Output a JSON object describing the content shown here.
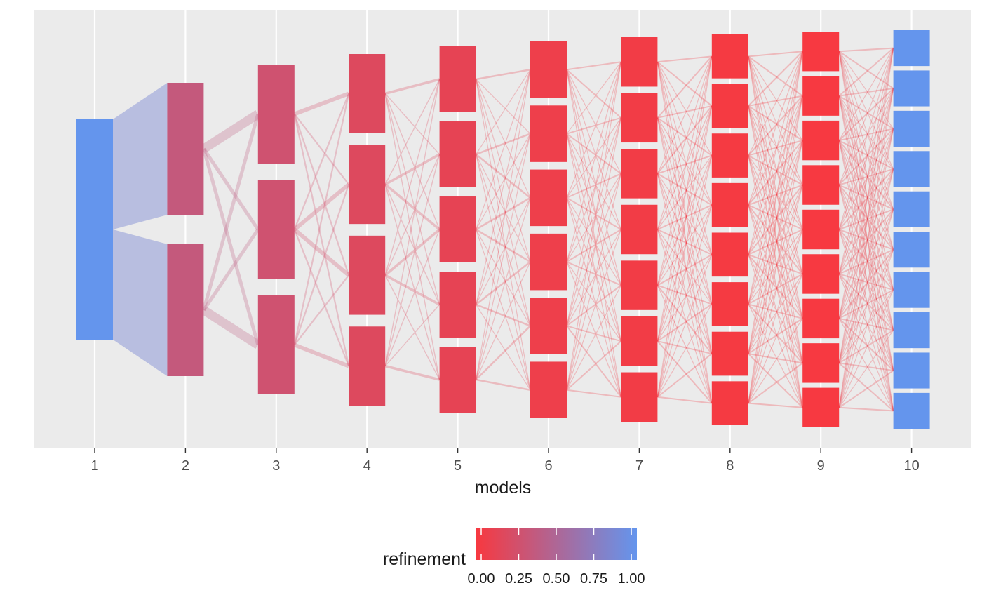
{
  "chart_data": {
    "type": "alluvial",
    "xlabel": "models",
    "ylabel": "",
    "title": "",
    "x_categories": [
      "1",
      "2",
      "3",
      "4",
      "5",
      "6",
      "7",
      "8",
      "9",
      "10"
    ],
    "clusters_per_model": [
      1,
      2,
      3,
      4,
      5,
      6,
      7,
      8,
      9,
      10
    ],
    "refinement_by_model": [
      1.0,
      0.35,
      0.28,
      0.18,
      0.12,
      0.07,
      0.04,
      0.02,
      0.01,
      1.0
    ],
    "flow_weight_by_model_pair": [
      0.5,
      0.36,
      0.16,
      0.1,
      0.07,
      0.05,
      0.03,
      0.02,
      0.01
    ],
    "grid": true,
    "legend": {
      "title": "refinement",
      "position": "bottom",
      "ticks": [
        "0.00",
        "0.25",
        "0.50",
        "0.75",
        "1.00"
      ],
      "range": [
        0,
        1
      ],
      "low_color": "#F8383F",
      "high_color": "#6495ED"
    },
    "colors": {
      "panel_background": "#EBEBEB",
      "grid": "#FFFFFF",
      "flow_low": "#F8383F",
      "flow_high": "#6495ED"
    }
  }
}
